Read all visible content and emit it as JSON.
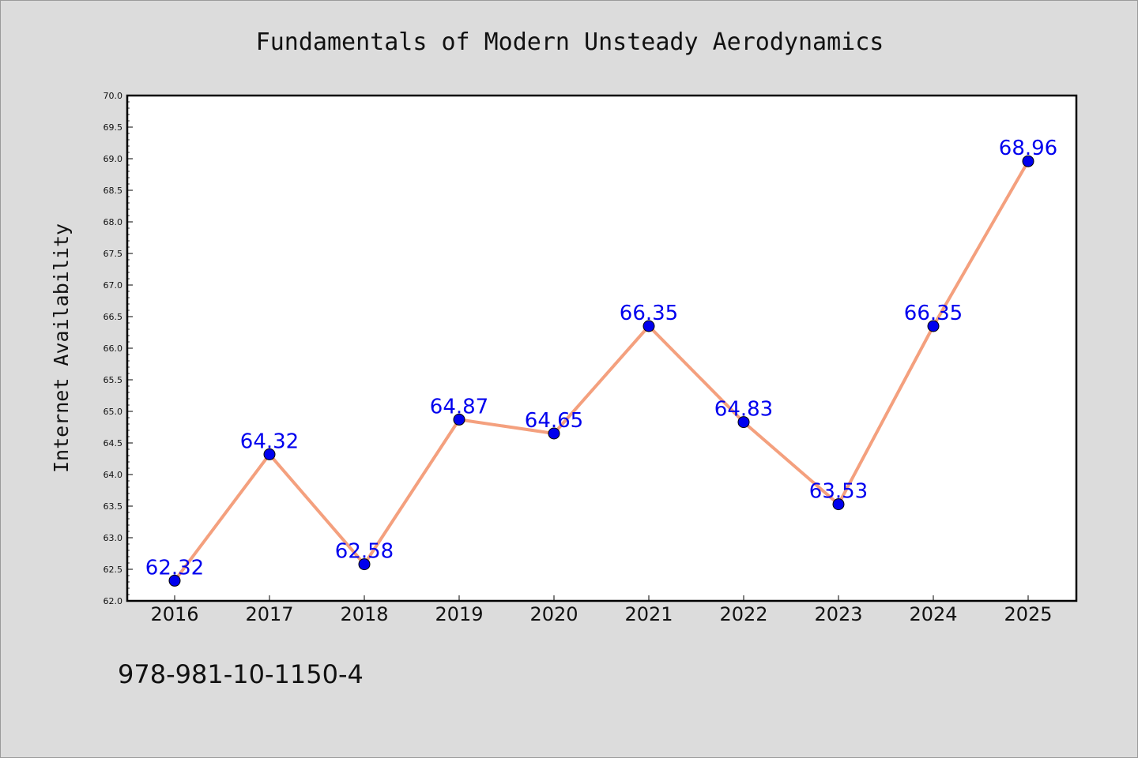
{
  "chart_data": {
    "type": "line",
    "title": "Fundamentals of Modern Unsteady Aerodynamics",
    "xlabel": "",
    "ylabel": "Internet Availability",
    "categories": [
      "2016",
      "2017",
      "2018",
      "2019",
      "2020",
      "2021",
      "2022",
      "2023",
      "2024",
      "2025"
    ],
    "series": [
      {
        "values": [
          62.32,
          64.32,
          62.58,
          64.87,
          64.65,
          66.35,
          64.83,
          63.53,
          66.35,
          68.96
        ],
        "labels": [
          "62.32",
          "64.32",
          "62.58",
          "64.87",
          "64.65",
          "66.35",
          "64.83",
          "63.53",
          "66.35",
          "68.96"
        ]
      }
    ],
    "ylim": [
      62.0,
      70.0
    ],
    "yticks": [
      "62.0",
      "62.5",
      "63.0",
      "63.5",
      "64.0",
      "64.5",
      "65.0",
      "65.5",
      "66.0",
      "66.5",
      "67.0",
      "67.5",
      "68.0",
      "68.5",
      "69.0",
      "69.5",
      "70.0"
    ],
    "grid": false,
    "line_color": "#f4a07e",
    "marker_color": "#0000ee",
    "label_color": "#0000ee"
  },
  "footer": {
    "isbn": "978-981-10-1150-4"
  }
}
